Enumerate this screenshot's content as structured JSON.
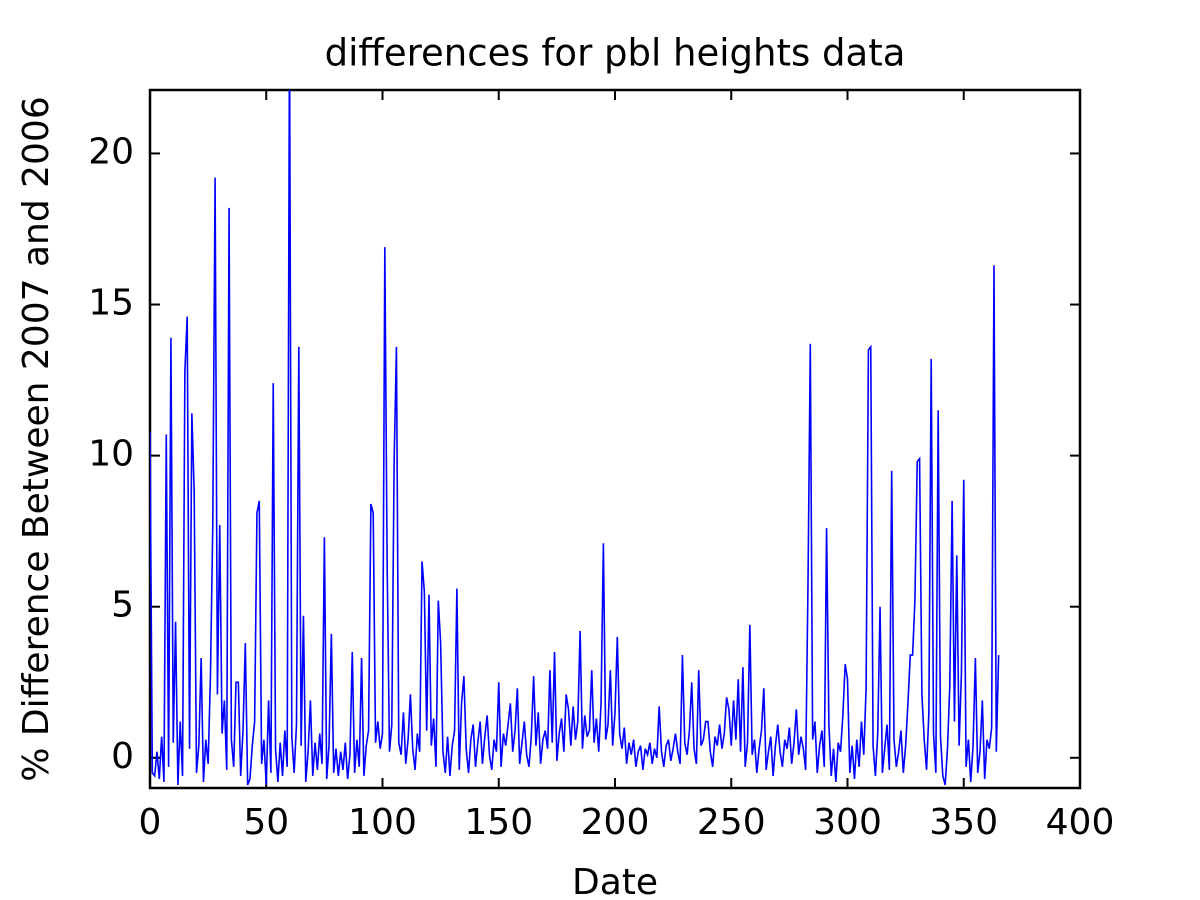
{
  "chart_data": {
    "type": "line",
    "title": "differences for pbl heights data",
    "x_label": "Date",
    "y_label": "% Difference Between 2007 and 2006",
    "xlim": [
      0,
      400
    ],
    "xticks": [
      0,
      50,
      100,
      150,
      200,
      250,
      300,
      350,
      400
    ],
    "ylim": [
      -1,
      22.1
    ],
    "yticks": [
      0,
      5,
      10,
      15,
      20
    ],
    "series": [
      {
        "color": "#0000ff",
        "x": [
          0,
          1,
          2,
          3,
          4,
          5,
          6,
          7,
          8,
          9,
          10,
          11,
          12,
          13,
          14,
          15,
          16,
          17,
          18,
          19,
          20,
          21,
          22,
          23,
          24,
          25,
          26,
          27,
          28,
          29,
          30,
          31,
          32,
          33,
          34,
          35,
          36,
          37,
          38,
          39,
          40,
          41,
          42,
          43,
          44,
          45,
          46,
          47,
          48,
          49,
          50,
          51,
          52,
          53,
          54,
          55,
          56,
          57,
          58,
          59,
          60,
          61,
          62,
          63,
          64,
          65,
          66,
          67,
          68,
          69,
          70,
          71,
          72,
          73,
          74,
          75,
          76,
          77,
          78,
          79,
          80,
          81,
          82,
          83,
          84,
          85,
          86,
          87,
          88,
          89,
          90,
          91,
          92,
          93,
          94,
          95,
          96,
          97,
          98,
          99,
          100,
          101,
          102,
          103,
          104,
          105,
          106,
          107,
          108,
          109,
          110,
          111,
          112,
          113,
          114,
          115,
          116,
          117,
          118,
          119,
          120,
          121,
          122,
          123,
          124,
          125,
          126,
          127,
          128,
          129,
          130,
          131,
          132,
          133,
          134,
          135,
          136,
          137,
          138,
          139,
          140,
          141,
          142,
          143,
          144,
          145,
          146,
          147,
          148,
          149,
          150,
          151,
          152,
          153,
          154,
          155,
          156,
          157,
          158,
          159,
          160,
          161,
          162,
          163,
          164,
          165,
          166,
          167,
          168,
          169,
          170,
          171,
          172,
          173,
          174,
          175,
          176,
          177,
          178,
          179,
          180,
          181,
          182,
          183,
          184,
          185,
          186,
          187,
          188,
          189,
          190,
          191,
          192,
          193,
          194,
          195,
          196,
          197,
          198,
          199,
          200,
          201,
          202,
          203,
          204,
          205,
          206,
          207,
          208,
          209,
          210,
          211,
          212,
          213,
          214,
          215,
          216,
          217,
          218,
          219,
          220,
          221,
          222,
          223,
          224,
          225,
          226,
          227,
          228,
          229,
          230,
          231,
          232,
          233,
          234,
          235,
          236,
          237,
          238,
          239,
          240,
          241,
          242,
          243,
          244,
          245,
          246,
          247,
          248,
          249,
          250,
          251,
          252,
          253,
          254,
          255,
          256,
          257,
          258,
          259,
          260,
          261,
          262,
          263,
          264,
          265,
          266,
          267,
          268,
          269,
          270,
          271,
          272,
          273,
          274,
          275,
          276,
          277,
          278,
          279,
          280,
          281,
          282,
          283,
          284,
          285,
          286,
          287,
          288,
          289,
          290,
          291,
          292,
          293,
          294,
          295,
          296,
          297,
          298,
          299,
          300,
          301,
          302,
          303,
          304,
          305,
          306,
          307,
          308,
          309,
          310,
          311,
          312,
          313,
          314,
          315,
          316,
          317,
          318,
          319,
          320,
          321,
          322,
          323,
          324,
          325,
          326,
          327,
          328,
          329,
          330,
          331,
          332,
          333,
          334,
          335,
          336,
          337,
          338,
          339,
          340,
          341,
          342,
          343,
          344,
          345,
          346,
          347,
          348,
          349,
          350,
          351,
          352,
          353,
          354,
          355,
          356,
          357,
          358,
          359,
          360,
          361,
          362,
          363,
          364,
          365
        ],
        "values": [
          10.8,
          -0.5,
          -0.6,
          0.2,
          -0.7,
          0.7,
          -0.8,
          10.7,
          -0.3,
          13.9,
          0.5,
          4.5,
          -0.9,
          1.2,
          -0.6,
          12.8,
          14.6,
          0.3,
          11.4,
          8.8,
          -0.5,
          0.4,
          3.3,
          -0.8,
          0.6,
          -0.2,
          2.7,
          7.7,
          19.2,
          2.1,
          7.7,
          0.8,
          1.9,
          -0.4,
          18.2,
          0.6,
          -0.3,
          2.5,
          2.5,
          -0.6,
          0.9,
          3.8,
          -0.9,
          -0.7,
          0.4,
          1.2,
          8.1,
          8.5,
          -0.2,
          0.6,
          -0.9,
          1.9,
          -0.5,
          12.4,
          0.3,
          -0.8,
          0.5,
          -0.6,
          0.9,
          -0.3,
          24.0,
          0.7,
          -0.5,
          1.1,
          13.6,
          0.4,
          4.7,
          -0.8,
          0.2,
          1.9,
          -0.6,
          0.5,
          -0.4,
          0.8,
          -0.2,
          7.3,
          -0.7,
          0.4,
          4.1,
          -0.5,
          0.3,
          -0.6,
          0.2,
          -0.4,
          0.5,
          -0.7,
          0.1,
          3.5,
          -0.5,
          0.6,
          -0.3,
          3.3,
          -0.6,
          0.4,
          0.9,
          8.4,
          8.1,
          0.5,
          1.2,
          0.3,
          0.8,
          16.9,
          6.4,
          0.2,
          1.1,
          9.8,
          13.6,
          0.5,
          0.1,
          1.5,
          -0.2,
          0.6,
          2.1,
          0.3,
          -0.4,
          0.8,
          0.2,
          6.5,
          5.5,
          0.9,
          5.4,
          0.4,
          1.3,
          -0.3,
          5.2,
          3.8,
          0.2,
          -0.5,
          0.7,
          -0.6,
          0.4,
          0.9,
          5.6,
          -0.4,
          1.8,
          2.7,
          0.3,
          -0.5,
          0.6,
          1.1,
          -0.3,
          0.5,
          1.2,
          -0.2,
          0.7,
          1.4,
          0.1,
          -0.4,
          0.6,
          0.2,
          2.5,
          -0.3,
          0.8,
          0.4,
          1.1,
          1.8,
          0.2,
          0.9,
          2.3,
          -0.2,
          0.5,
          1.2,
          0.1,
          -0.3,
          0.7,
          2.7,
          0.4,
          1.5,
          -0.2,
          0.6,
          0.9,
          0.3,
          2.9,
          0.5,
          3.5,
          -0.1,
          0.8,
          1.3,
          0.2,
          2.1,
          1.6,
          0.4,
          1.7,
          0.6,
          1.2,
          4.2,
          0.3,
          1.4,
          0.7,
          0.9,
          2.9,
          0.5,
          1.3,
          0.2,
          1.8,
          7.1,
          0.6,
          1.1,
          2.9,
          0.4,
          1.5,
          4.0,
          0.8,
          0.3,
          1.0,
          -0.2,
          0.5,
          0.1,
          0.6,
          -0.3,
          0.2,
          0.4,
          -0.4,
          0.3,
          0.1,
          0.5,
          -0.2,
          0.3,
          0.0,
          1.7,
          0.2,
          -0.3,
          0.4,
          0.6,
          -0.1,
          0.3,
          0.8,
          0.2,
          -0.2,
          3.4,
          0.5,
          0.1,
          0.9,
          2.5,
          0.3,
          -0.2,
          2.9,
          0.4,
          0.6,
          1.2,
          1.2,
          0.2,
          -0.3,
          0.7,
          0.4,
          1.1,
          0.3,
          0.8,
          2.0,
          1.6,
          0.4,
          1.9,
          0.6,
          2.6,
          0.2,
          3.0,
          -0.3,
          0.5,
          4.4,
          0.1,
          0.6,
          -0.5,
          0.3,
          0.9,
          2.3,
          -0.4,
          0.2,
          0.7,
          -0.6,
          0.4,
          1.1,
          0.2,
          -0.3,
          0.6,
          0.3,
          1.0,
          -0.2,
          0.5,
          1.6,
          0.1,
          0.7,
          0.3,
          -0.4,
          5.7,
          13.7,
          0.6,
          1.2,
          -0.5,
          0.4,
          0.9,
          -0.3,
          7.6,
          1.1,
          -0.6,
          0.3,
          -0.8,
          0.5,
          0.2,
          1.4,
          3.1,
          2.6,
          -0.5,
          0.4,
          -0.7,
          0.6,
          -0.3,
          1.2,
          0.1,
          2.3,
          13.5,
          13.6,
          0.4,
          -0.6,
          0.8,
          5.0,
          -0.5,
          0.3,
          1.1,
          -0.4,
          9.5,
          0.6,
          -0.3,
          0.2,
          0.9,
          -0.5,
          0.4,
          1.8,
          3.4,
          3.4,
          5.2,
          9.8,
          9.9,
          2.1,
          0.6,
          -0.4,
          1.5,
          13.2,
          0.8,
          -0.5,
          11.5,
          0.7,
          -0.6,
          -0.9,
          0.3,
          2.4,
          8.5,
          1.2,
          6.7,
          0.4,
          2.8,
          9.2,
          -0.3,
          0.6,
          -0.8,
          0.4,
          3.3,
          -0.5,
          0.2,
          1.9,
          -0.7,
          0.6,
          0.3,
          1.0,
          16.3,
          0.2,
          3.4
        ]
      }
    ]
  }
}
